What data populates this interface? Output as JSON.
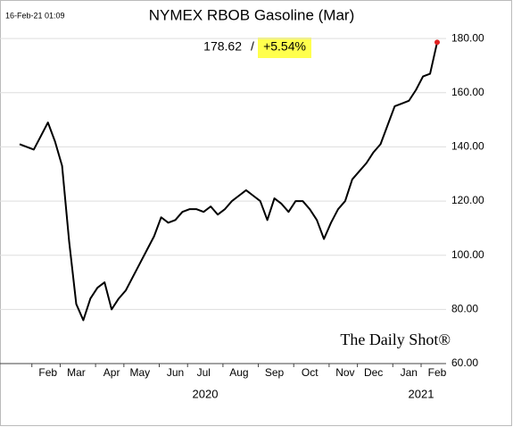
{
  "chart_data": {
    "type": "line",
    "title": "NYMEX RBOB Gasoline (Mar)",
    "timestamp": "16-Feb-21 01:09",
    "watermark": "The Daily Shot®",
    "last_value_label": "178.62",
    "separator": "/",
    "change_label": "+5.54%",
    "year_labels": [
      "2020",
      "2021"
    ],
    "categories": [
      null,
      null,
      null,
      null,
      "Feb",
      null,
      null,
      null,
      "Mar",
      null,
      null,
      null,
      null,
      "Apr",
      null,
      null,
      null,
      "May",
      null,
      null,
      null,
      null,
      "Jun",
      null,
      null,
      null,
      "Jul",
      null,
      null,
      null,
      null,
      "Aug",
      null,
      null,
      null,
      null,
      "Sep",
      null,
      null,
      null,
      null,
      "Oct",
      null,
      null,
      null,
      null,
      "Nov",
      null,
      null,
      null,
      "Dec",
      null,
      null,
      null,
      null,
      "Jan",
      null,
      null,
      null,
      "Feb"
    ],
    "series": [
      {
        "color": "#000000",
        "values": [
          141,
          140,
          139,
          144,
          149,
          142,
          133,
          105,
          82,
          76,
          84,
          88,
          90,
          80,
          84,
          87,
          92,
          97,
          102,
          107,
          114,
          112,
          113,
          116,
          117,
          117,
          116,
          118,
          115,
          117,
          120,
          122,
          124,
          122,
          120,
          113,
          121,
          119,
          116,
          120,
          120,
          117,
          113,
          106,
          112,
          117,
          120,
          128,
          131,
          134,
          138,
          141,
          148,
          155,
          156,
          157,
          161,
          166,
          167,
          178.62
        ]
      }
    ],
    "last_point_color": "#e02020",
    "ylim": [
      60,
      184
    ],
    "yticks": [
      {
        "value": 60,
        "label": "60.00"
      },
      {
        "value": 80,
        "label": "80.00"
      },
      {
        "value": 100,
        "label": "100.00"
      },
      {
        "value": 120,
        "label": "120.00"
      },
      {
        "value": 140,
        "label": "140.00"
      },
      {
        "value": 160,
        "label": "160.00"
      },
      {
        "value": 180,
        "label": "180.00"
      }
    ],
    "grid": true
  }
}
